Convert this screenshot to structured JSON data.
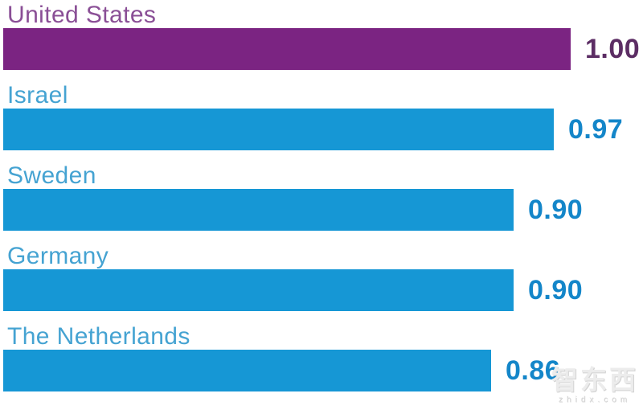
{
  "chart_data": {
    "type": "bar",
    "orientation": "horizontal",
    "title": "",
    "xlabel": "",
    "ylabel": "",
    "xlim": [
      0,
      1
    ],
    "grid": false,
    "legend": false,
    "categories": [
      "United States",
      "Israel",
      "Sweden",
      "Germany",
      "The Netherlands"
    ],
    "values": [
      1.0,
      0.97,
      0.9,
      0.9,
      0.86
    ],
    "value_labels": [
      "1.00",
      "0.97",
      "0.90",
      "0.90",
      "0.86"
    ],
    "highlighted_category": "United States",
    "colors": {
      "highlight_bar": "#7b2482",
      "highlight_label": "#8a4f96",
      "highlight_value": "#5c2d64",
      "bar": "#1697d5",
      "label": "#45a3d2",
      "value": "#1486c9"
    }
  },
  "watermark": {
    "text": "智东西",
    "subtext": "zhidx.com"
  }
}
